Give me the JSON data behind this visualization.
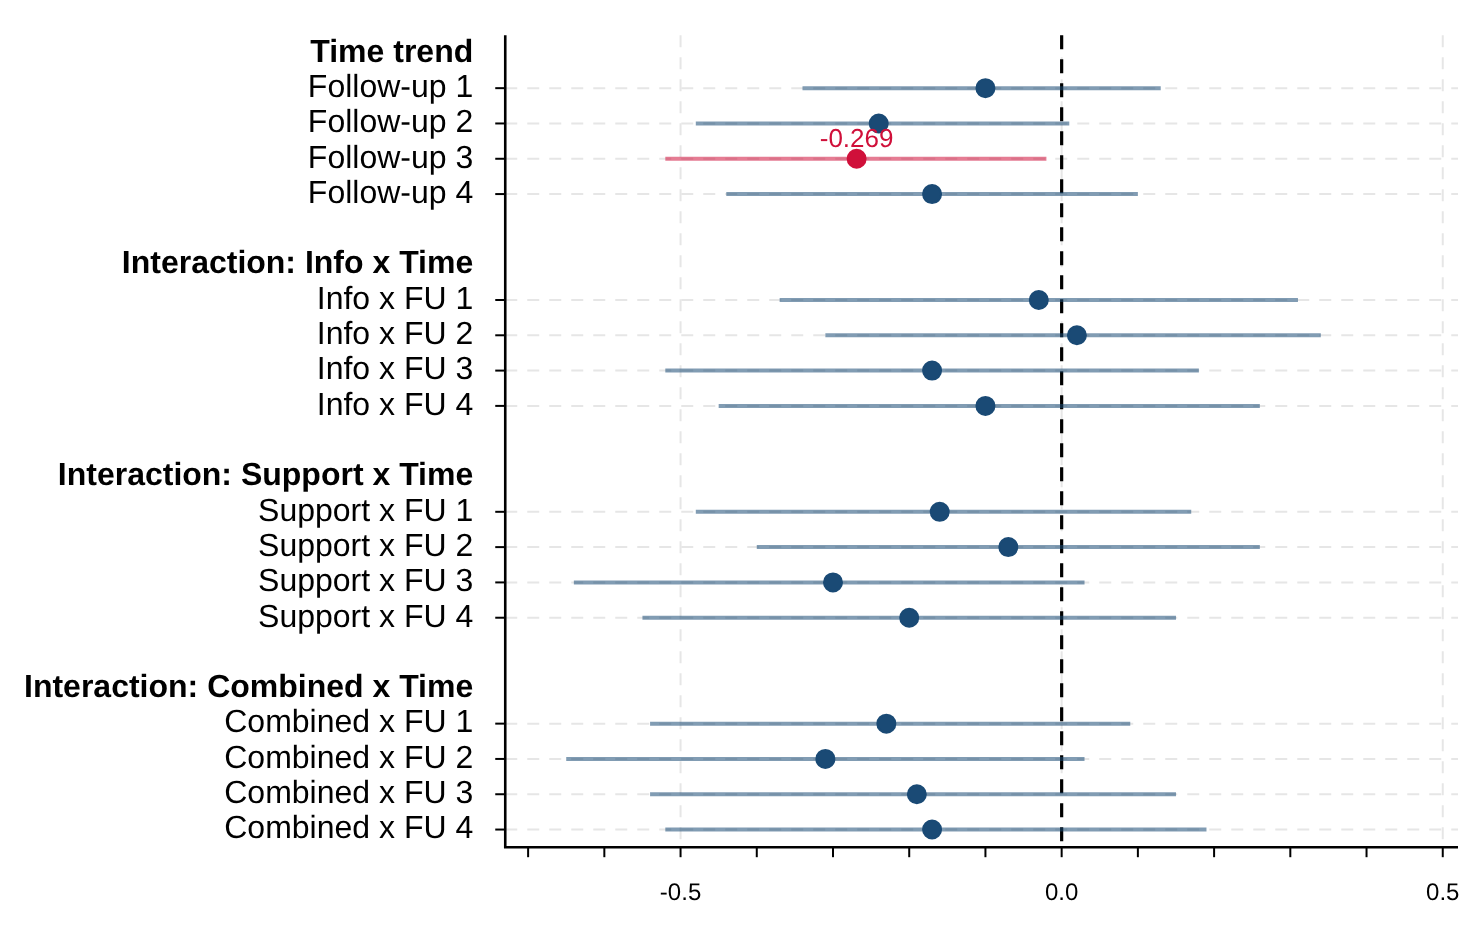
{
  "chart_data": {
    "type": "scatter",
    "orientation": "horizontal",
    "categories": [
      "Time trend",
      "Follow-up 1",
      "Follow-up 2",
      "Follow-up 3",
      "Follow-up 4",
      null,
      "Interaction: Info x Time",
      "Info x FU 1",
      "Info x FU 2",
      "Info x FU 3",
      "Info x FU 4",
      null,
      "Interaction: Support x Time",
      "Support x FU 1",
      "Support x FU 2",
      "Support x FU 3",
      "Support x FU 4",
      null,
      "Interaction: Combined x Time",
      "Combined x FU 1",
      "Combined x FU 2",
      "Combined x FU 3",
      "Combined x FU 4"
    ],
    "values": [
      null,
      -0.1,
      -0.24,
      -0.269,
      -0.17,
      null,
      null,
      -0.03,
      0.02,
      -0.17,
      -0.1,
      null,
      null,
      -0.16,
      -0.07,
      -0.3,
      -0.2,
      null,
      null,
      -0.23,
      -0.31,
      -0.19,
      -0.17
    ],
    "colors": [
      "#1a4a75",
      "#1a4a75",
      "#1a4a75",
      "#d0103a",
      "#1a4a75",
      "#1a4a75",
      "#1a4a75",
      "#1a4a75",
      "#1a4a75",
      "#1a4a75",
      "#1a4a75",
      "#1a4a75",
      "#1a4a75",
      "#1a4a75",
      "#1a4a75",
      "#1a4a75",
      "#1a4a75",
      "#1a4a75",
      "#1a4a75",
      "#1a4a75",
      "#1a4a75",
      "#1a4a75",
      "#1a4a75"
    ],
    "errors": [
      null,
      [
        -0.34,
        0.13
      ],
      [
        -0.48,
        0.01
      ],
      [
        -0.52,
        -0.02
      ],
      [
        -0.44,
        0.1
      ],
      null,
      null,
      [
        -0.37,
        0.31
      ],
      [
        -0.31,
        0.34
      ],
      [
        -0.52,
        0.18
      ],
      [
        -0.45,
        0.26
      ],
      null,
      null,
      [
        -0.48,
        0.17
      ],
      [
        -0.4,
        0.26
      ],
      [
        -0.64,
        0.03
      ],
      [
        -0.55,
        0.15
      ],
      null,
      null,
      [
        -0.54,
        0.09
      ],
      [
        -0.65,
        0.03
      ],
      [
        -0.54,
        0.15
      ],
      [
        -0.52,
        0.19
      ]
    ],
    "value_labels": [
      null,
      null,
      null,
      "-0.269",
      null,
      null,
      null,
      null,
      null,
      null,
      null,
      null,
      null,
      null,
      null,
      null,
      null,
      null,
      null,
      null,
      null,
      null,
      null
    ],
    "xlim": [
      -0.73,
      0.52
    ],
    "xticks": [
      {
        "value": -0.7,
        "label": null
      },
      {
        "value": -0.6,
        "label": null
      },
      -0.5,
      {
        "value": -0.4,
        "label": null
      },
      {
        "value": -0.3,
        "label": null
      },
      {
        "value": -0.2,
        "label": null
      },
      {
        "value": -0.1,
        "label": null
      },
      {
        "value": 0,
        "label": "0.0"
      },
      {
        "value": 0.1,
        "label": null
      },
      {
        "value": 0.2,
        "label": null
      },
      {
        "value": 0.3,
        "label": null
      },
      {
        "value": 0.4,
        "label": null
      },
      0.5
    ],
    "ref_lines": [
      {
        "axis": "x",
        "value": 0,
        "color": "#000000",
        "line_style": "dashed"
      }
    ],
    "grid": true,
    "marker": "circle"
  }
}
